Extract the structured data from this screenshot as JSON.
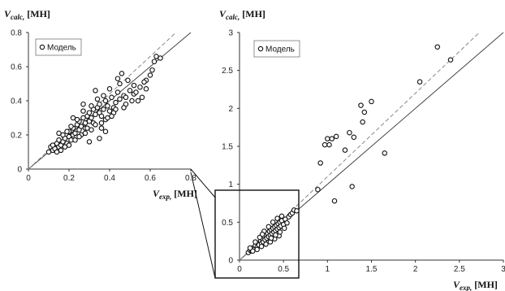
{
  "chart_data": [
    {
      "type": "scatter",
      "panel": "left-inset",
      "title": "",
      "xlabel": {
        "symbol": "V",
        "sub": "exp,",
        "unit": " [MH]"
      },
      "ylabel": {
        "symbol": "V",
        "sub": "calc,",
        "unit": " [MH]"
      },
      "xlim": [
        0,
        0.8
      ],
      "ylim": [
        0,
        0.8
      ],
      "xticks": [
        "0",
        "0.2",
        "0.4",
        "0.6",
        "0.8"
      ],
      "yticks": [
        "0",
        "0.2",
        "0.4",
        "0.6",
        "0.8"
      ],
      "grid": false,
      "legend": {
        "label": "Модель",
        "position": "top-left"
      },
      "reference_lines": [
        {
          "style": "solid",
          "slope": 1.0
        },
        {
          "style": "dashed",
          "slope": 1.1
        }
      ],
      "series": [
        {
          "name": "Модель",
          "points": [
            [
              0.1,
              0.1
            ],
            [
              0.11,
              0.13
            ],
            [
              0.12,
              0.11
            ],
            [
              0.13,
              0.12
            ],
            [
              0.14,
              0.15
            ],
            [
              0.15,
              0.13
            ],
            [
              0.15,
              0.17
            ],
            [
              0.16,
              0.14
            ],
            [
              0.17,
              0.16
            ],
            [
              0.18,
              0.18
            ],
            [
              0.19,
              0.15
            ],
            [
              0.2,
              0.19
            ],
            [
              0.2,
              0.22
            ],
            [
              0.21,
              0.17
            ],
            [
              0.22,
              0.2
            ],
            [
              0.22,
              0.24
            ],
            [
              0.23,
              0.21
            ],
            [
              0.24,
              0.26
            ],
            [
              0.25,
              0.23
            ],
            [
              0.25,
              0.28
            ],
            [
              0.26,
              0.25
            ],
            [
              0.27,
              0.3
            ],
            [
              0.28,
              0.27
            ],
            [
              0.28,
              0.24
            ],
            [
              0.29,
              0.31
            ],
            [
              0.3,
              0.28
            ],
            [
              0.3,
              0.33
            ],
            [
              0.31,
              0.3
            ],
            [
              0.32,
              0.35
            ],
            [
              0.32,
              0.27
            ],
            [
              0.33,
              0.32
            ],
            [
              0.34,
              0.36
            ],
            [
              0.35,
              0.33
            ],
            [
              0.35,
              0.38
            ],
            [
              0.36,
              0.31
            ],
            [
              0.37,
              0.35
            ],
            [
              0.38,
              0.4
            ],
            [
              0.38,
              0.29
            ],
            [
              0.39,
              0.37
            ],
            [
              0.4,
              0.34
            ],
            [
              0.41,
              0.42
            ],
            [
              0.42,
              0.36
            ],
            [
              0.43,
              0.39
            ],
            [
              0.44,
              0.45
            ],
            [
              0.45,
              0.41
            ],
            [
              0.47,
              0.43
            ],
            [
              0.48,
              0.38
            ],
            [
              0.5,
              0.46
            ],
            [
              0.52,
              0.44
            ],
            [
              0.55,
              0.48
            ],
            [
              0.58,
              0.52
            ],
            [
              0.6,
              0.55
            ],
            [
              0.62,
              0.63
            ],
            [
              0.63,
              0.66
            ],
            [
              0.65,
              0.65
            ],
            [
              0.12,
              0.14
            ],
            [
              0.14,
              0.1
            ],
            [
              0.17,
              0.2
            ],
            [
              0.18,
              0.13
            ],
            [
              0.19,
              0.22
            ],
            [
              0.21,
              0.25
            ],
            [
              0.23,
              0.17
            ],
            [
              0.24,
              0.29
            ],
            [
              0.26,
              0.2
            ],
            [
              0.27,
              0.34
            ],
            [
              0.29,
              0.24
            ],
            [
              0.31,
              0.37
            ],
            [
              0.33,
              0.26
            ],
            [
              0.34,
              0.41
            ],
            [
              0.36,
              0.24
            ],
            [
              0.37,
              0.43
            ],
            [
              0.39,
              0.3
            ],
            [
              0.4,
              0.47
            ],
            [
              0.42,
              0.33
            ],
            [
              0.45,
              0.5
            ],
            [
              0.47,
              0.36
            ],
            [
              0.49,
              0.52
            ],
            [
              0.51,
              0.4
            ],
            [
              0.53,
              0.45
            ],
            [
              0.56,
              0.42
            ],
            [
              0.58,
              0.47
            ],
            [
              0.3,
              0.16
            ],
            [
              0.35,
              0.18
            ],
            [
              0.38,
              0.22
            ],
            [
              0.44,
              0.53
            ],
            [
              0.46,
              0.56
            ],
            [
              0.33,
              0.46
            ],
            [
              0.27,
              0.38
            ],
            [
              0.22,
              0.3
            ],
            [
              0.15,
              0.21
            ],
            [
              0.16,
              0.11
            ],
            [
              0.2,
              0.14
            ],
            [
              0.25,
              0.19
            ],
            [
              0.28,
              0.21
            ],
            [
              0.31,
              0.23
            ],
            [
              0.36,
              0.27
            ],
            [
              0.41,
              0.31
            ],
            [
              0.43,
              0.35
            ],
            [
              0.48,
              0.42
            ],
            [
              0.52,
              0.49
            ],
            [
              0.54,
              0.4
            ],
            [
              0.57,
              0.51
            ],
            [
              0.61,
              0.58
            ]
          ]
        }
      ]
    },
    {
      "type": "scatter",
      "panel": "main",
      "title": "",
      "xlabel": {
        "symbol": "V",
        "sub": "exp,",
        "unit": " [MH]"
      },
      "ylabel": {
        "symbol": "V",
        "sub": "calc,",
        "unit": " [MH]"
      },
      "xlim": [
        0,
        3
      ],
      "ylim": [
        0,
        3
      ],
      "xticks": [
        "0",
        "0.5",
        "1",
        "1.5",
        "2",
        "2.5",
        "3"
      ],
      "yticks": [
        "0",
        "0.5",
        "1",
        "1.5",
        "2",
        "2.5",
        "3"
      ],
      "grid": false,
      "legend": {
        "label": "Модель",
        "position": "top-left"
      },
      "reference_lines": [
        {
          "style": "solid",
          "slope": 1.0
        },
        {
          "style": "dashed",
          "slope": 1.1
        }
      ],
      "zoom_box": {
        "x": [
          0,
          0.6
        ],
        "y": [
          0,
          0.75
        ]
      },
      "series": [
        {
          "name": "Модель",
          "points": [
            [
              0.1,
              0.1
            ],
            [
              0.12,
              0.13
            ],
            [
              0.14,
              0.12
            ],
            [
              0.15,
              0.16
            ],
            [
              0.17,
              0.15
            ],
            [
              0.18,
              0.19
            ],
            [
              0.2,
              0.17
            ],
            [
              0.21,
              0.22
            ],
            [
              0.22,
              0.2
            ],
            [
              0.24,
              0.25
            ],
            [
              0.25,
              0.22
            ],
            [
              0.26,
              0.28
            ],
            [
              0.27,
              0.24
            ],
            [
              0.28,
              0.31
            ],
            [
              0.29,
              0.27
            ],
            [
              0.3,
              0.33
            ],
            [
              0.31,
              0.29
            ],
            [
              0.32,
              0.35
            ],
            [
              0.33,
              0.31
            ],
            [
              0.34,
              0.38
            ],
            [
              0.35,
              0.33
            ],
            [
              0.36,
              0.4
            ],
            [
              0.37,
              0.35
            ],
            [
              0.38,
              0.42
            ],
            [
              0.39,
              0.37
            ],
            [
              0.4,
              0.44
            ],
            [
              0.41,
              0.39
            ],
            [
              0.42,
              0.46
            ],
            [
              0.43,
              0.41
            ],
            [
              0.44,
              0.48
            ],
            [
              0.45,
              0.43
            ],
            [
              0.46,
              0.5
            ],
            [
              0.47,
              0.45
            ],
            [
              0.48,
              0.52
            ],
            [
              0.5,
              0.47
            ],
            [
              0.52,
              0.54
            ],
            [
              0.54,
              0.49
            ],
            [
              0.56,
              0.57
            ],
            [
              0.58,
              0.6
            ],
            [
              0.6,
              0.62
            ],
            [
              0.62,
              0.66
            ],
            [
              0.65,
              0.65
            ],
            [
              0.15,
              0.12
            ],
            [
              0.2,
              0.14
            ],
            [
              0.25,
              0.18
            ],
            [
              0.3,
              0.21
            ],
            [
              0.35,
              0.24
            ],
            [
              0.4,
              0.28
            ],
            [
              0.45,
              0.32
            ],
            [
              0.33,
              0.44
            ],
            [
              0.28,
              0.38
            ],
            [
              0.23,
              0.3
            ],
            [
              0.38,
              0.5
            ],
            [
              0.43,
              0.55
            ],
            [
              0.48,
              0.58
            ],
            [
              0.12,
              0.16
            ],
            [
              0.18,
              0.24
            ],
            [
              0.26,
              0.34
            ],
            [
              0.36,
              0.29
            ],
            [
              0.41,
              0.33
            ],
            [
              0.46,
              0.37
            ],
            [
              0.51,
              0.42
            ],
            [
              0.89,
              0.93
            ],
            [
              0.92,
              1.28
            ],
            [
              0.97,
              1.52
            ],
            [
              1.0,
              1.6
            ],
            [
              1.02,
              1.52
            ],
            [
              1.05,
              1.6
            ],
            [
              1.08,
              0.78
            ],
            [
              1.1,
              1.63
            ],
            [
              1.2,
              1.45
            ],
            [
              1.25,
              1.68
            ],
            [
              1.28,
              0.97
            ],
            [
              1.3,
              1.62
            ],
            [
              1.38,
              2.04
            ],
            [
              1.4,
              1.82
            ],
            [
              1.42,
              1.95
            ],
            [
              1.5,
              2.09
            ],
            [
              1.65,
              1.41
            ],
            [
              2.05,
              2.35
            ],
            [
              2.25,
              2.81
            ],
            [
              2.4,
              2.64
            ]
          ]
        }
      ]
    }
  ]
}
